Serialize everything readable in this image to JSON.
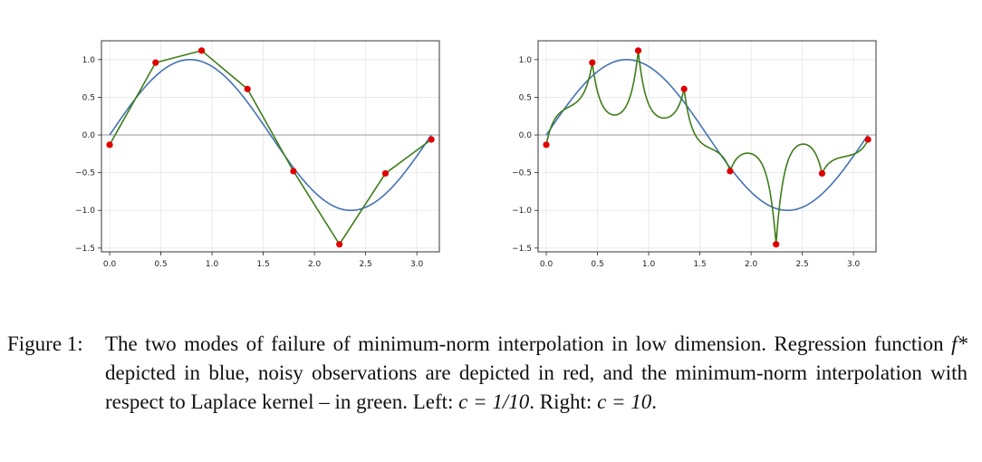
{
  "chart_data": [
    {
      "type": "line",
      "title": "",
      "xlabel": "",
      "ylabel": "",
      "xlim": [
        -0.08,
        3.22
      ],
      "ylim": [
        -1.55,
        1.25
      ],
      "xticks": [
        0.0,
        0.5,
        1.0,
        1.5,
        2.0,
        2.5,
        3.0
      ],
      "xtick_labels": [
        "0.0",
        "0.5",
        "1.0",
        "1.5",
        "2.0",
        "2.5",
        "3.0"
      ],
      "yticks": [
        1.0,
        0.5,
        0.0,
        -0.5,
        -1.0,
        -1.5
      ],
      "ytick_labels": [
        "1.0",
        "0.5",
        "0.0",
        "−0.5",
        "−1.0",
        "−1.5"
      ],
      "grid": true,
      "legend": "none",
      "colors": {
        "regression": "#4472b4",
        "interpolant": "#3e7d19",
        "observations": "#e00000",
        "zero_line": "#999999"
      },
      "regression": {
        "function": "sin(2x)",
        "x_range": [
          0,
          3.14
        ]
      },
      "observations": {
        "x": [
          0.0,
          0.449,
          0.898,
          1.346,
          1.795,
          2.244,
          2.693,
          3.142
        ],
        "y": [
          -0.13,
          0.96,
          1.12,
          0.61,
          -0.48,
          -1.45,
          -0.51,
          -0.06
        ]
      },
      "interpolant": {
        "kernel": "Laplace",
        "c": 0.1
      }
    },
    {
      "type": "line",
      "title": "",
      "xlabel": "",
      "ylabel": "",
      "xlim": [
        -0.08,
        3.22
      ],
      "ylim": [
        -1.55,
        1.25
      ],
      "xticks": [
        0.0,
        0.5,
        1.0,
        1.5,
        2.0,
        2.5,
        3.0
      ],
      "xtick_labels": [
        "0.0",
        "0.5",
        "1.0",
        "1.5",
        "2.0",
        "2.5",
        "3.0"
      ],
      "yticks": [
        1.0,
        0.5,
        0.0,
        -0.5,
        -1.0,
        -1.5
      ],
      "ytick_labels": [
        "1.0",
        "0.5",
        "0.0",
        "−0.5",
        "−1.0",
        "−1.5"
      ],
      "grid": true,
      "legend": "none",
      "colors": {
        "regression": "#4472b4",
        "interpolant": "#3e7d19",
        "observations": "#e00000",
        "zero_line": "#999999"
      },
      "regression": {
        "function": "sin(2x)",
        "x_range": [
          0,
          3.14
        ]
      },
      "observations": {
        "x": [
          0.0,
          0.449,
          0.898,
          1.346,
          1.795,
          2.244,
          2.693,
          3.142
        ],
        "y": [
          -0.13,
          0.96,
          1.12,
          0.61,
          -0.48,
          -1.45,
          -0.51,
          -0.06
        ]
      },
      "interpolant": {
        "kernel": "Laplace",
        "c": 10,
        "dip_values": [
          0.37,
          0.18,
          0.16,
          -0.18,
          -0.18,
          -0.04
        ]
      }
    }
  ],
  "caption": {
    "label": "Figure 1:",
    "part1": "The two modes of failure of minimum-norm interpolation in low dimension. Regression function ",
    "fstar": "f*",
    "part2": " depicted in blue, noisy observations are depicted in red, and the minimum-norm interpolation with respect to Laplace kernel – in green. Left: ",
    "eq_left": "c = 1/10",
    "part3": ". Right: ",
    "eq_right": "c = 10",
    "part4": "."
  }
}
